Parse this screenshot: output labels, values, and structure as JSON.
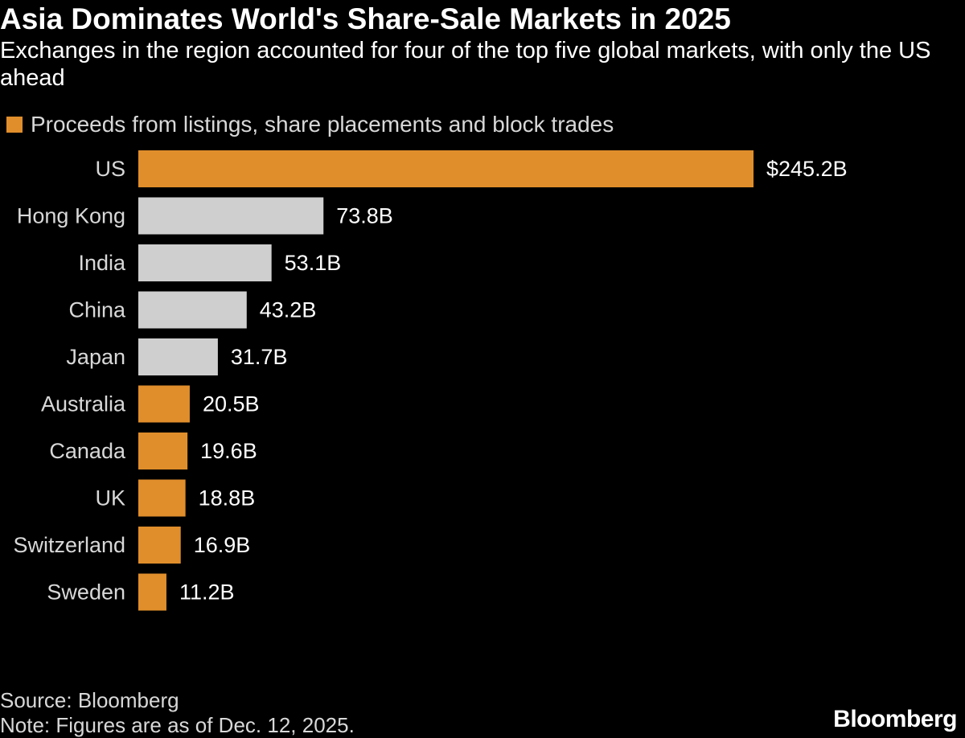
{
  "chart_data": {
    "type": "bar",
    "orientation": "horizontal",
    "title": "Asia Dominates World's Share-Sale Markets in 2025",
    "subtitle": "Exchanges in the region accounted for four of the top five global markets, with only the US ahead",
    "legend": [
      "Proceeds from listings, share placements and block trades"
    ],
    "legend_placement": "top-left",
    "categories": [
      "US",
      "Hong Kong",
      "India",
      "China",
      "Japan",
      "Australia",
      "Canada",
      "UK",
      "Switzerland",
      "Sweden"
    ],
    "values": [
      245.2,
      73.8,
      53.1,
      43.2,
      31.7,
      20.5,
      19.6,
      18.8,
      16.9,
      11.2
    ],
    "value_labels": [
      "$245.2B",
      "73.8B",
      "53.1B",
      "43.2B",
      "31.7B",
      "20.5B",
      "19.6B",
      "18.8B",
      "16.9B",
      "11.2B"
    ],
    "unit": "B",
    "highlight": [
      "US",
      "Australia",
      "Canada",
      "UK",
      "Switzerland",
      "Sweden"
    ],
    "muted": [
      "Hong Kong",
      "India",
      "China",
      "Japan"
    ],
    "xlabel": "",
    "ylabel": "",
    "grid": false
  },
  "colors": {
    "background": "#000000",
    "highlight_bar": "#e08e2b",
    "muted_bar": "#cfcfcf",
    "text": "#ffffff",
    "secondary_text": "#d8d8d8"
  },
  "footer": {
    "source": "Source: Bloomberg",
    "note": "Note: Figures are as of Dec. 12, 2025."
  },
  "brand": "Bloomberg"
}
